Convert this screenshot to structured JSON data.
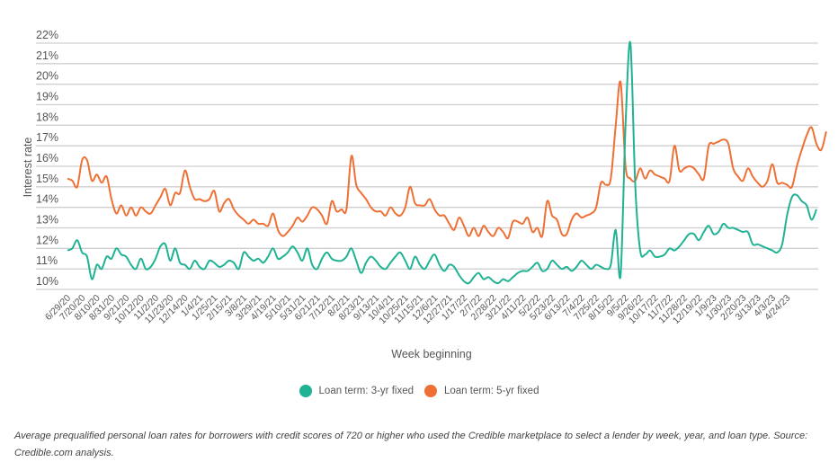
{
  "chart_data": {
    "type": "line",
    "title": "",
    "xlabel": "Week beginning",
    "ylabel": "Interest rate",
    "ylim": [
      10,
      22
    ],
    "yticks": [
      "10%",
      "11%",
      "12%",
      "13%",
      "14%",
      "15%",
      "16%",
      "17%",
      "18%",
      "19%",
      "20%",
      "21%",
      "22%"
    ],
    "grid": true,
    "legend_position": "bottom",
    "x_tick_labels": [
      "6/29/20",
      "7/20/20",
      "8/10/20",
      "8/31/20",
      "9/21/20",
      "10/12/20",
      "11/2/20",
      "11/23/20",
      "12/14/20",
      "1/4/21",
      "1/25/21",
      "2/15/21",
      "3/8/21",
      "3/29/21",
      "4/19/21",
      "5/10/21",
      "5/31/21",
      "6/21/21",
      "7/12/21",
      "8/2/21",
      "8/23/21",
      "9/13/21",
      "10/4/21",
      "10/25/21",
      "11/15/21",
      "12/6/21",
      "12/27/21",
      "1/17/22",
      "2/7/22",
      "2/28/22",
      "3/21/22",
      "4/11/22",
      "5/2/22",
      "5/23/22",
      "6/13/22",
      "7/4/22",
      "7/25/22",
      "8/15/22",
      "9/5/22",
      "9/26/22",
      "10/17/22",
      "11/7/22",
      "11/28/22",
      "12/19/22",
      "1/9/23",
      "1/30/23",
      "2/20/23",
      "3/13/23",
      "4/3/23",
      "4/24/23"
    ],
    "series": [
      {
        "name": "Loan term: 3-yr fixed",
        "color": "#1fb394",
        "values": [
          11.9,
          12.0,
          12.4,
          11.8,
          11.6,
          10.5,
          11.2,
          11.0,
          11.6,
          11.5,
          12.0,
          11.7,
          11.6,
          11.2,
          11.0,
          11.5,
          11.0,
          11.1,
          11.5,
          12.1,
          12.2,
          11.4,
          12.0,
          11.3,
          11.2,
          11.0,
          11.4,
          11.1,
          11.0,
          11.4,
          11.3,
          11.1,
          11.2,
          11.4,
          11.3,
          11.0,
          11.8,
          11.6,
          11.4,
          11.5,
          11.3,
          11.6,
          12.0,
          11.5,
          11.6,
          11.8,
          12.1,
          11.8,
          11.4,
          12.0,
          11.2,
          11.0,
          11.5,
          11.8,
          11.5,
          11.4,
          11.4,
          11.6,
          12.0,
          11.4,
          10.8,
          11.3,
          11.6,
          11.4,
          11.1,
          11.0,
          11.3,
          11.6,
          11.8,
          11.4,
          11.0,
          11.6,
          11.2,
          11.0,
          11.4,
          11.7,
          11.2,
          10.9,
          11.2,
          11.1,
          10.7,
          10.4,
          10.3,
          10.6,
          10.8,
          10.5,
          10.6,
          10.4,
          10.3,
          10.5,
          10.4,
          10.6,
          10.8,
          10.9,
          10.9,
          11.1,
          11.3,
          10.9,
          11.0,
          11.4,
          11.2,
          11.0,
          11.1,
          10.9,
          11.1,
          11.4,
          11.2,
          11.0,
          11.2,
          11.1,
          11.0,
          11.2,
          12.9,
          10.7,
          18.0,
          22.0,
          15.0,
          11.9,
          11.7,
          11.9,
          11.6,
          11.6,
          11.7,
          12.0,
          11.9,
          12.1,
          12.4,
          12.7,
          12.7,
          12.4,
          12.8,
          13.1,
          12.7,
          12.8,
          13.2,
          13.0,
          13.0,
          12.9,
          12.8,
          12.8,
          12.2,
          12.2,
          12.1,
          12.0,
          11.9,
          11.8,
          12.2,
          13.6,
          14.5,
          14.6,
          14.3,
          14.1,
          13.4,
          13.9
        ]
      },
      {
        "name": "Loan term: 5-yr fixed",
        "color": "#ef7035",
        "values": [
          15.4,
          15.3,
          15.0,
          16.3,
          16.3,
          15.3,
          15.6,
          15.2,
          15.5,
          14.4,
          13.7,
          14.1,
          13.6,
          14.0,
          13.6,
          14.0,
          13.8,
          13.7,
          14.1,
          14.5,
          14.9,
          14.1,
          14.7,
          14.7,
          15.8,
          15.0,
          14.4,
          14.4,
          14.3,
          14.4,
          14.8,
          13.8,
          14.2,
          14.4,
          13.9,
          13.6,
          13.4,
          13.2,
          13.4,
          13.2,
          13.2,
          13.1,
          13.7,
          12.9,
          12.6,
          12.8,
          13.1,
          13.5,
          13.3,
          13.6,
          14.0,
          13.9,
          13.6,
          13.2,
          14.3,
          13.8,
          13.9,
          13.9,
          16.5,
          15.1,
          14.7,
          14.4,
          14.0,
          13.8,
          13.8,
          13.6,
          14.0,
          13.7,
          13.6,
          14.0,
          15.0,
          14.2,
          14.1,
          14.1,
          14.4,
          13.9,
          13.6,
          13.6,
          13.2,
          12.9,
          13.5,
          13.1,
          12.6,
          13.0,
          12.6,
          13.1,
          12.8,
          12.6,
          13.0,
          12.8,
          12.5,
          13.3,
          13.3,
          13.2,
          13.5,
          12.8,
          13.0,
          12.6,
          14.3,
          13.6,
          13.4,
          12.7,
          12.7,
          13.4,
          13.7,
          13.5,
          13.6,
          13.7,
          14.0,
          15.2,
          15.1,
          15.4,
          18.0,
          20.1,
          16.0,
          15.4,
          15.3,
          15.9,
          15.4,
          15.8,
          15.6,
          15.5,
          15.4,
          15.3,
          17.0,
          15.8,
          15.9,
          16.0,
          15.9,
          15.6,
          15.4,
          17.0,
          17.1,
          17.2,
          17.3,
          17.1,
          15.9,
          15.5,
          15.3,
          15.9,
          15.5,
          15.2,
          15.0,
          15.3,
          16.1,
          15.2,
          15.2,
          15.1,
          15.0,
          16.0,
          16.8,
          17.5,
          17.9,
          17.1,
          16.8,
          17.7
        ]
      }
    ]
  },
  "legend": {
    "items": [
      {
        "label": "Loan term: 3-yr fixed",
        "color": "#1fb394"
      },
      {
        "label": "Loan term: 5-yr fixed",
        "color": "#ef7035"
      }
    ]
  },
  "caption": "Average prequalified personal loan rates for borrowers with credit scores of 720 or higher who used the Credible marketplace to select a lender by week, year, and loan type. Source: Credible.com analysis."
}
